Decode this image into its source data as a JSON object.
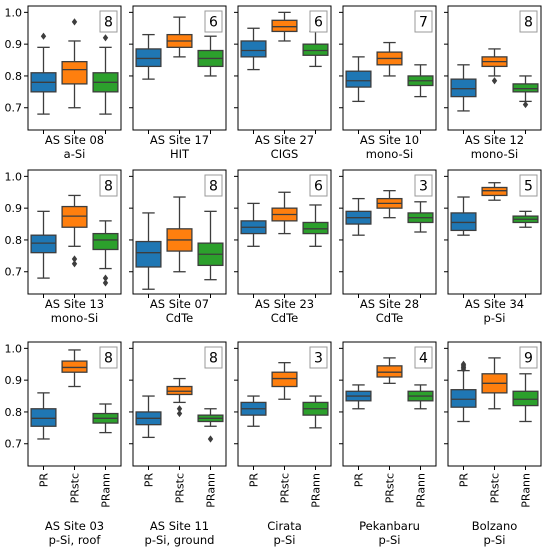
{
  "chart_data": {
    "type": "box",
    "layout": {
      "rows": 3,
      "cols": 5,
      "sharey": "row"
    },
    "categories": [
      "PR",
      "PRstc",
      "PRann"
    ],
    "colors": {
      "PR": "#1f77b4",
      "PRstc": "#ff7f0e",
      "PRann": "#2ca02c"
    },
    "ylim": [
      0.63,
      1.02
    ],
    "yticks": [
      "1.0",
      "0.9",
      "0.8",
      "0.7"
    ],
    "yticks_values": [
      1.0,
      0.9,
      0.8,
      0.7
    ],
    "panels": [
      {
        "title": "AS Site 08",
        "subtitle": "a-Si",
        "badge": "8",
        "boxes": [
          {
            "q1": 0.75,
            "median": 0.78,
            "q3": 0.81,
            "whislo": 0.68,
            "whishi": 0.89,
            "fliers": [
              0.925
            ]
          },
          {
            "q1": 0.775,
            "median": 0.82,
            "q3": 0.845,
            "whislo": 0.7,
            "whishi": 0.91,
            "fliers": [
              0.97
            ]
          },
          {
            "q1": 0.75,
            "median": 0.78,
            "q3": 0.81,
            "whislo": 0.68,
            "whishi": 0.89,
            "fliers": [
              0.92
            ]
          }
        ]
      },
      {
        "title": "AS Site 17",
        "subtitle": "HIT",
        "badge": "6",
        "boxes": [
          {
            "q1": 0.83,
            "median": 0.855,
            "q3": 0.885,
            "whislo": 0.79,
            "whishi": 0.93,
            "fliers": []
          },
          {
            "q1": 0.89,
            "median": 0.91,
            "q3": 0.93,
            "whislo": 0.86,
            "whishi": 0.985,
            "fliers": []
          },
          {
            "q1": 0.83,
            "median": 0.855,
            "q3": 0.88,
            "whislo": 0.8,
            "whishi": 0.925,
            "fliers": []
          }
        ]
      },
      {
        "title": "AS Site 27",
        "subtitle": "CIGS",
        "badge": "6",
        "boxes": [
          {
            "q1": 0.86,
            "median": 0.88,
            "q3": 0.91,
            "whislo": 0.82,
            "whishi": 0.95,
            "fliers": []
          },
          {
            "q1": 0.94,
            "median": 0.955,
            "q3": 0.975,
            "whislo": 0.91,
            "whishi": 1.0,
            "fliers": []
          },
          {
            "q1": 0.865,
            "median": 0.88,
            "q3": 0.9,
            "whislo": 0.83,
            "whishi": 0.94,
            "fliers": []
          }
        ]
      },
      {
        "title": "AS Site 10",
        "subtitle": "mono-Si",
        "badge": "7",
        "boxes": [
          {
            "q1": 0.765,
            "median": 0.785,
            "q3": 0.815,
            "whislo": 0.72,
            "whishi": 0.86,
            "fliers": []
          },
          {
            "q1": 0.835,
            "median": 0.855,
            "q3": 0.875,
            "whislo": 0.8,
            "whishi": 0.905,
            "fliers": []
          },
          {
            "q1": 0.77,
            "median": 0.785,
            "q3": 0.8,
            "whislo": 0.735,
            "whishi": 0.835,
            "fliers": []
          }
        ]
      },
      {
        "title": "AS Site 12",
        "subtitle": "mono-Si",
        "badge": "8",
        "boxes": [
          {
            "q1": 0.735,
            "median": 0.76,
            "q3": 0.79,
            "whislo": 0.69,
            "whishi": 0.835,
            "fliers": []
          },
          {
            "q1": 0.83,
            "median": 0.845,
            "q3": 0.86,
            "whislo": 0.8,
            "whishi": 0.885,
            "fliers": [
              0.785
            ]
          },
          {
            "q1": 0.75,
            "median": 0.76,
            "q3": 0.775,
            "whislo": 0.72,
            "whishi": 0.8,
            "fliers": [
              0.71
            ]
          }
        ]
      },
      {
        "title": "AS Site 13",
        "subtitle": "mono-Si",
        "badge": "8",
        "boxes": [
          {
            "q1": 0.76,
            "median": 0.79,
            "q3": 0.815,
            "whislo": 0.68,
            "whishi": 0.89,
            "fliers": []
          },
          {
            "q1": 0.84,
            "median": 0.875,
            "q3": 0.905,
            "whislo": 0.78,
            "whishi": 0.94,
            "fliers": [
              0.74,
              0.725
            ]
          },
          {
            "q1": 0.77,
            "median": 0.8,
            "q3": 0.82,
            "whislo": 0.71,
            "whishi": 0.86,
            "fliers": [
              0.68,
              0.665
            ]
          }
        ]
      },
      {
        "title": "AS Site 07",
        "subtitle": "CdTe",
        "badge": "8",
        "boxes": [
          {
            "q1": 0.715,
            "median": 0.76,
            "q3": 0.795,
            "whislo": 0.645,
            "whishi": 0.885,
            "fliers": []
          },
          {
            "q1": 0.765,
            "median": 0.8,
            "q3": 0.835,
            "whislo": 0.7,
            "whishi": 0.935,
            "fliers": []
          },
          {
            "q1": 0.72,
            "median": 0.755,
            "q3": 0.79,
            "whislo": 0.675,
            "whishi": 0.89,
            "fliers": []
          }
        ]
      },
      {
        "title": "AS Site 23",
        "subtitle": "CdTe",
        "badge": "6",
        "boxes": [
          {
            "q1": 0.82,
            "median": 0.84,
            "q3": 0.86,
            "whislo": 0.78,
            "whishi": 0.915,
            "fliers": []
          },
          {
            "q1": 0.86,
            "median": 0.88,
            "q3": 0.9,
            "whislo": 0.82,
            "whishi": 0.95,
            "fliers": []
          },
          {
            "q1": 0.82,
            "median": 0.835,
            "q3": 0.855,
            "whislo": 0.78,
            "whishi": 0.91,
            "fliers": []
          }
        ]
      },
      {
        "title": "AS Site 28",
        "subtitle": "CdTe",
        "badge": "3",
        "boxes": [
          {
            "q1": 0.85,
            "median": 0.87,
            "q3": 0.89,
            "whislo": 0.815,
            "whishi": 0.93,
            "fliers": []
          },
          {
            "q1": 0.9,
            "median": 0.915,
            "q3": 0.93,
            "whislo": 0.87,
            "whishi": 0.955,
            "fliers": []
          },
          {
            "q1": 0.855,
            "median": 0.87,
            "q3": 0.885,
            "whislo": 0.825,
            "whishi": 0.92,
            "fliers": []
          }
        ]
      },
      {
        "title": "AS Site 34",
        "subtitle": "p-Si",
        "badge": "5",
        "boxes": [
          {
            "q1": 0.83,
            "median": 0.855,
            "q3": 0.885,
            "whislo": 0.815,
            "whishi": 0.935,
            "fliers": []
          },
          {
            "q1": 0.94,
            "median": 0.955,
            "q3": 0.965,
            "whislo": 0.925,
            "whishi": 0.98,
            "fliers": []
          },
          {
            "q1": 0.855,
            "median": 0.865,
            "q3": 0.875,
            "whislo": 0.84,
            "whishi": 0.89,
            "fliers": []
          }
        ]
      },
      {
        "title": "AS Site 03",
        "subtitle": "p-Si, roof",
        "badge": "8",
        "boxes": [
          {
            "q1": 0.755,
            "median": 0.78,
            "q3": 0.81,
            "whislo": 0.715,
            "whishi": 0.86,
            "fliers": []
          },
          {
            "q1": 0.925,
            "median": 0.94,
            "q3": 0.96,
            "whislo": 0.88,
            "whishi": 0.995,
            "fliers": []
          },
          {
            "q1": 0.765,
            "median": 0.78,
            "q3": 0.795,
            "whislo": 0.735,
            "whishi": 0.825,
            "fliers": []
          }
        ]
      },
      {
        "title": "AS Site 11",
        "subtitle": "p-Si, ground",
        "badge": "8",
        "boxes": [
          {
            "q1": 0.76,
            "median": 0.78,
            "q3": 0.8,
            "whislo": 0.72,
            "whishi": 0.85,
            "fliers": []
          },
          {
            "q1": 0.855,
            "median": 0.865,
            "q3": 0.88,
            "whislo": 0.83,
            "whishi": 0.905,
            "fliers": [
              0.81,
              0.795
            ]
          },
          {
            "q1": 0.77,
            "median": 0.78,
            "q3": 0.79,
            "whislo": 0.755,
            "whishi": 0.81,
            "fliers": [
              0.715
            ]
          }
        ]
      },
      {
        "title": "Cirata",
        "subtitle": "p-Si",
        "badge": "3",
        "boxes": [
          {
            "q1": 0.79,
            "median": 0.81,
            "q3": 0.83,
            "whislo": 0.755,
            "whishi": 0.85,
            "fliers": []
          },
          {
            "q1": 0.88,
            "median": 0.905,
            "q3": 0.925,
            "whislo": 0.84,
            "whishi": 0.955,
            "fliers": []
          },
          {
            "q1": 0.79,
            "median": 0.81,
            "q3": 0.83,
            "whislo": 0.75,
            "whishi": 0.85,
            "fliers": []
          }
        ]
      },
      {
        "title": "Pekanbaru",
        "subtitle": "p-Si",
        "badge": "4",
        "boxes": [
          {
            "q1": 0.835,
            "median": 0.85,
            "q3": 0.865,
            "whislo": 0.81,
            "whishi": 0.885,
            "fliers": []
          },
          {
            "q1": 0.91,
            "median": 0.925,
            "q3": 0.945,
            "whislo": 0.89,
            "whishi": 0.97,
            "fliers": []
          },
          {
            "q1": 0.835,
            "median": 0.85,
            "q3": 0.865,
            "whislo": 0.81,
            "whishi": 0.885,
            "fliers": []
          }
        ]
      },
      {
        "title": "Bolzano",
        "subtitle": "p-Si",
        "badge": "9",
        "boxes": [
          {
            "q1": 0.815,
            "median": 0.84,
            "q3": 0.87,
            "whislo": 0.77,
            "whishi": 0.93,
            "fliers": [
              0.935,
              0.94,
              0.945,
              0.95
            ]
          },
          {
            "q1": 0.86,
            "median": 0.89,
            "q3": 0.92,
            "whislo": 0.81,
            "whishi": 0.97,
            "fliers": []
          },
          {
            "q1": 0.82,
            "median": 0.84,
            "q3": 0.865,
            "whislo": 0.77,
            "whishi": 0.92,
            "fliers": []
          }
        ]
      }
    ]
  }
}
